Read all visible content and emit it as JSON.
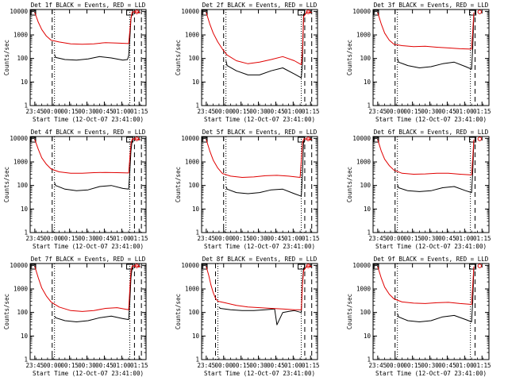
{
  "colors": {
    "events": "#000000",
    "lld": "#e00000",
    "axis": "#000000",
    "background": "#ffffff"
  },
  "chart_data": [
    {
      "type": "line",
      "title": "Det 1f BLACK = Events, RED = LLD",
      "xlabel": "Start Time (12-Oct-07 23:41:00)",
      "ylabel": "Counts/sec",
      "x_tick_labels": [
        "23:45",
        "00:00",
        "00:15",
        "00:30",
        "00:45",
        "01:00",
        "01:15"
      ],
      "y_tick_labels": [
        "1",
        "10",
        "100",
        "1000",
        "10000"
      ],
      "xlim_minutes": [
        0,
        100
      ],
      "ylim": [
        1,
        12000
      ],
      "y_scale": "log",
      "dashed_markers_min": [
        19,
        90,
        96
      ],
      "dotted_markers_min": [
        21,
        86
      ],
      "series": [
        {
          "name": "Events",
          "color": "black",
          "x": [
            20,
            21,
            22,
            30,
            40,
            50,
            60,
            70,
            80,
            84,
            85,
            86,
            87,
            88
          ],
          "y": [
            null,
            150,
            110,
            90,
            85,
            95,
            120,
            105,
            85,
            90,
            130,
            700,
            5000,
            8000
          ]
        },
        {
          "name": "LLD",
          "color": "red",
          "x": [
            4,
            7,
            10,
            14,
            18,
            25,
            35,
            45,
            55,
            65,
            75,
            85,
            86,
            87,
            88,
            91,
            95
          ],
          "y": [
            9000,
            3500,
            1700,
            900,
            600,
            500,
            420,
            400,
            420,
            470,
            450,
            430,
            1500,
            5000,
            9500,
            9500,
            9000
          ]
        }
      ]
    },
    {
      "type": "line",
      "title": "Det 2f BLACK = Events, RED = LLD",
      "xlabel": "Start Time (12-Oct-07 23:41:00)",
      "ylabel": "Counts/sec",
      "x_tick_labels": [
        "23:45",
        "00:00",
        "00:15",
        "00:30",
        "00:45",
        "01:00",
        "01:15"
      ],
      "y_tick_labels": [
        "1",
        "10",
        "100",
        "1000",
        "10000"
      ],
      "xlim_minutes": [
        0,
        100
      ],
      "ylim": [
        1,
        12000
      ],
      "y_scale": "log",
      "dashed_markers_min": [
        19,
        89,
        95
      ],
      "dotted_markers_min": [
        21,
        86
      ],
      "series": [
        {
          "name": "Events",
          "color": "black",
          "x": [
            20,
            21,
            22,
            30,
            40,
            50,
            60,
            70,
            80,
            86,
            87,
            88
          ],
          "y": [
            null,
            80,
            50,
            30,
            20,
            20,
            30,
            40,
            22,
            15,
            60,
            8000
          ]
        },
        {
          "name": "LLD",
          "color": "red",
          "x": [
            4,
            7,
            10,
            14,
            18,
            22,
            30,
            40,
            50,
            60,
            70,
            80,
            86,
            87,
            88,
            91,
            95
          ],
          "y": [
            9000,
            3000,
            1200,
            500,
            250,
            140,
            80,
            60,
            70,
            90,
            120,
            80,
            55,
            200,
            6000,
            9500,
            9000
          ]
        }
      ]
    },
    {
      "type": "line",
      "title": "Det 3f BLACK = Events, RED = LLD",
      "xlabel": "Start Time (12-Oct-07 23:41:00)",
      "ylabel": "Counts/sec",
      "x_tick_labels": [
        "23:45",
        "00:00",
        "00:15",
        "00:30",
        "00:45",
        "01:00",
        "01:15"
      ],
      "y_tick_labels": [
        "1",
        "10",
        "100",
        "1000",
        "10000"
      ],
      "xlim_minutes": [
        0,
        100
      ],
      "ylim": [
        1,
        12000
      ],
      "y_scale": "log",
      "dashed_markers_min": [
        19,
        88
      ],
      "dotted_markers_min": [
        21,
        84
      ],
      "series": [
        {
          "name": "Events",
          "color": "black",
          "x": [
            20,
            21,
            22,
            30,
            40,
            50,
            60,
            70,
            80,
            85,
            86,
            87
          ],
          "y": [
            null,
            100,
            70,
            50,
            40,
            45,
            60,
            70,
            45,
            35,
            300,
            8000
          ]
        },
        {
          "name": "LLD",
          "color": "red",
          "x": [
            4,
            7,
            10,
            14,
            18,
            25,
            35,
            45,
            55,
            65,
            75,
            85,
            86,
            87
          ],
          "y": [
            9000,
            3000,
            1200,
            600,
            400,
            350,
            320,
            330,
            300,
            280,
            260,
            250,
            1500,
            9000
          ]
        }
      ]
    },
    {
      "type": "line",
      "title": "Det 4f BLACK = Events, RED = LLD",
      "xlabel": "Start Time (12-Oct-07 23:41:00)",
      "ylabel": "Counts/sec",
      "x_tick_labels": [
        "23:45",
        "00:00",
        "00:15",
        "00:30",
        "00:45",
        "01:00",
        "01:15"
      ],
      "y_tick_labels": [
        "1",
        "10",
        "100",
        "1000",
        "10000"
      ],
      "xlim_minutes": [
        0,
        100
      ],
      "ylim": [
        1,
        12000
      ],
      "y_scale": "log",
      "dashed_markers_min": [
        19,
        90,
        96
      ],
      "dotted_markers_min": [
        21,
        86
      ],
      "series": [
        {
          "name": "Events",
          "color": "black",
          "x": [
            20,
            21,
            22,
            30,
            40,
            50,
            60,
            70,
            80,
            85,
            86,
            87,
            88
          ],
          "y": [
            null,
            130,
            100,
            70,
            60,
            65,
            90,
            100,
            75,
            70,
            400,
            3000,
            8000
          ]
        },
        {
          "name": "LLD",
          "color": "red",
          "x": [
            4,
            7,
            10,
            14,
            18,
            25,
            35,
            45,
            55,
            65,
            75,
            85,
            86,
            87,
            88,
            91,
            95
          ],
          "y": [
            9000,
            3500,
            1500,
            800,
            500,
            380,
            330,
            330,
            350,
            360,
            350,
            340,
            1500,
            6000,
            9500,
            9500,
            9000
          ]
        }
      ]
    },
    {
      "type": "line",
      "title": "Det 5f BLACK = Events, RED = LLD",
      "xlabel": "Start Time (12-Oct-07 23:41:00)",
      "ylabel": "Counts/sec",
      "x_tick_labels": [
        "23:45",
        "00:00",
        "00:15",
        "00:30",
        "00:45",
        "01:00",
        "01:15"
      ],
      "y_tick_labels": [
        "1",
        "10",
        "100",
        "1000",
        "10000"
      ],
      "xlim_minutes": [
        0,
        100
      ],
      "ylim": [
        1,
        12000
      ],
      "y_scale": "log",
      "dashed_markers_min": [
        19,
        89,
        95
      ],
      "dotted_markers_min": [
        21,
        86
      ],
      "series": [
        {
          "name": "Events",
          "color": "black",
          "x": [
            20,
            21,
            22,
            30,
            40,
            50,
            60,
            70,
            80,
            86,
            87,
            88
          ],
          "y": [
            null,
            90,
            70,
            50,
            45,
            50,
            65,
            70,
            45,
            35,
            300,
            8000
          ]
        },
        {
          "name": "LLD",
          "color": "red",
          "x": [
            4,
            7,
            10,
            14,
            18,
            25,
            35,
            45,
            55,
            65,
            75,
            85,
            86,
            87,
            88,
            91,
            95
          ],
          "y": [
            9000,
            3000,
            1200,
            550,
            320,
            250,
            220,
            230,
            260,
            270,
            250,
            220,
            1200,
            6000,
            9500,
            9500,
            9000
          ]
        }
      ]
    },
    {
      "type": "line",
      "title": "Det 6f BLACK = Events, RED = LLD",
      "xlabel": "Start Time (12-Oct-07 23:41:00)",
      "ylabel": "Counts/sec",
      "x_tick_labels": [
        "23:45",
        "00:00",
        "00:15",
        "00:30",
        "00:45",
        "01:00",
        "01:15"
      ],
      "y_tick_labels": [
        "1",
        "10",
        "100",
        "1000",
        "10000"
      ],
      "xlim_minutes": [
        0,
        100
      ],
      "ylim": [
        1,
        12000
      ],
      "y_scale": "log",
      "dashed_markers_min": [
        19,
        88
      ],
      "dotted_markers_min": [
        21,
        84
      ],
      "series": [
        {
          "name": "Events",
          "color": "black",
          "x": [
            20,
            21,
            22,
            30,
            40,
            50,
            60,
            70,
            80,
            85,
            86,
            87
          ],
          "y": [
            null,
            110,
            80,
            60,
            55,
            60,
            80,
            90,
            60,
            50,
            400,
            8000
          ]
        },
        {
          "name": "LLD",
          "color": "red",
          "x": [
            4,
            7,
            10,
            14,
            18,
            25,
            35,
            45,
            55,
            65,
            75,
            85,
            86,
            87
          ],
          "y": [
            9000,
            3000,
            1300,
            700,
            450,
            330,
            300,
            310,
            330,
            330,
            300,
            280,
            1500,
            9000
          ]
        }
      ]
    },
    {
      "type": "line",
      "title": "Det 7f BLACK = Events, RED = LLD",
      "xlabel": "Start Time (12-Oct-07 23:41:00)",
      "ylabel": "Counts/sec",
      "x_tick_labels": [
        "23:45",
        "00:00",
        "00:15",
        "00:30",
        "00:45",
        "01:00",
        "01:15"
      ],
      "y_tick_labels": [
        "1",
        "10",
        "100",
        "1000",
        "10000"
      ],
      "xlim_minutes": [
        0,
        100
      ],
      "ylim": [
        1,
        12000
      ],
      "y_scale": "log",
      "dashed_markers_min": [
        19,
        90,
        96
      ],
      "dotted_markers_min": [
        21,
        86
      ],
      "series": [
        {
          "name": "Events",
          "color": "black",
          "x": [
            20,
            21,
            22,
            30,
            40,
            50,
            60,
            70,
            80,
            85,
            86,
            87,
            88
          ],
          "y": [
            null,
            70,
            60,
            45,
            40,
            45,
            60,
            70,
            55,
            50,
            300,
            3000,
            8000
          ]
        },
        {
          "name": "LLD",
          "color": "red",
          "x": [
            4,
            7,
            10,
            14,
            18,
            25,
            35,
            45,
            55,
            65,
            75,
            85,
            86,
            87,
            88,
            91,
            95
          ],
          "y": [
            9000,
            3000,
            1100,
            500,
            280,
            170,
            120,
            110,
            120,
            150,
            160,
            130,
            1000,
            6000,
            9500,
            9500,
            9000
          ]
        }
      ]
    },
    {
      "type": "line",
      "title": "Det 8f BLACK = Events, RED = LLD",
      "xlabel": "Start Time (12-Oct-07 23:41:00)",
      "ylabel": "Counts/sec",
      "x_tick_labels": [
        "23:45",
        "00:00",
        "00:15",
        "00:30",
        "00:45",
        "01:00",
        "01:15"
      ],
      "y_tick_labels": [
        "1",
        "10",
        "100",
        "1000",
        "10000"
      ],
      "xlim_minutes": [
        0,
        100
      ],
      "ylim": [
        1,
        12000
      ],
      "y_scale": "log",
      "dashed_markers_min": [
        12,
        89,
        95
      ],
      "dotted_markers_min": [
        14,
        86
      ],
      "series": [
        {
          "name": "Events",
          "color": "black",
          "x": [
            14,
            15,
            16,
            25,
            35,
            45,
            55,
            63,
            65,
            70,
            75,
            80,
            86,
            87,
            88
          ],
          "y": [
            null,
            170,
            150,
            130,
            120,
            120,
            130,
            140,
            30,
            100,
            110,
            120,
            100,
            2000,
            8000
          ]
        },
        {
          "name": "LLD",
          "color": "red",
          "x": [
            4,
            6,
            8,
            10,
            12,
            14,
            20,
            30,
            40,
            50,
            60,
            70,
            80,
            86,
            87,
            88,
            91,
            95
          ],
          "y": [
            9000,
            4000,
            1500,
            700,
            400,
            300,
            260,
            200,
            170,
            160,
            150,
            140,
            130,
            130,
            1500,
            6000,
            9500,
            9000
          ]
        }
      ]
    },
    {
      "type": "line",
      "title": "Det 9f BLACK = Events, RED = LLD",
      "xlabel": "Start Time (12-Oct-07 23:41:00)",
      "ylabel": "Counts/sec",
      "x_tick_labels": [
        "23:45",
        "00:00",
        "00:15",
        "00:30",
        "00:45",
        "01:00",
        "01:15"
      ],
      "y_tick_labels": [
        "1",
        "10",
        "100",
        "1000",
        "10000"
      ],
      "xlim_minutes": [
        0,
        100
      ],
      "ylim": [
        1,
        12000
      ],
      "y_scale": "log",
      "dashed_markers_min": [
        19,
        88
      ],
      "dotted_markers_min": [
        21,
        84
      ],
      "series": [
        {
          "name": "Events",
          "color": "black",
          "x": [
            20,
            21,
            22,
            30,
            40,
            50,
            60,
            70,
            80,
            85,
            86,
            87
          ],
          "y": [
            null,
            90,
            65,
            45,
            40,
            45,
            65,
            75,
            50,
            40,
            300,
            8000
          ]
        },
        {
          "name": "LLD",
          "color": "red",
          "x": [
            4,
            7,
            10,
            14,
            18,
            25,
            35,
            45,
            55,
            65,
            75,
            85,
            86,
            87
          ],
          "y": [
            9000,
            3000,
            1200,
            600,
            380,
            280,
            250,
            240,
            260,
            270,
            240,
            220,
            1500,
            9000
          ]
        }
      ]
    }
  ]
}
